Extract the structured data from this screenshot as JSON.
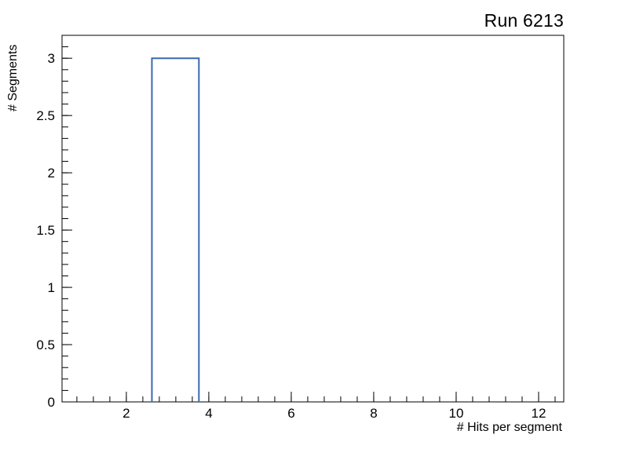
{
  "chart": {
    "title": "Run 6213",
    "xlabel": "# Hits per segment",
    "ylabel": "# Segments"
  },
  "chart_data": {
    "type": "histogram",
    "title": "Run 6213",
    "xlabel": "# Hits per segment",
    "ylabel": "# Segments",
    "xlim": [
      0.44,
      12.61
    ],
    "ylim": [
      0,
      3.2
    ],
    "x_ticks": [
      {
        "v": 2,
        "label": "2"
      },
      {
        "v": 4,
        "label": "4"
      },
      {
        "v": 6,
        "label": "6"
      },
      {
        "v": 8,
        "label": "8"
      },
      {
        "v": 10,
        "label": "10"
      },
      {
        "v": 12,
        "label": "12"
      }
    ],
    "y_ticks": [
      {
        "v": 0,
        "label": "0"
      },
      {
        "v": 0.5,
        "label": "0.5"
      },
      {
        "v": 1,
        "label": "1"
      },
      {
        "v": 1.5,
        "label": "1.5"
      },
      {
        "v": 2,
        "label": "2"
      },
      {
        "v": 2.5,
        "label": "2.5"
      },
      {
        "v": 3,
        "label": "3"
      }
    ],
    "x_minor_step": 0.4,
    "y_minor_step": 0.1,
    "bins": [
      {
        "x_low": 2.62,
        "x_high": 3.76,
        "count": 3
      }
    ],
    "grid": false,
    "legend": null,
    "line_color": "#3a68ae",
    "axis_color": "#000000",
    "background_color": "#ffffff"
  }
}
